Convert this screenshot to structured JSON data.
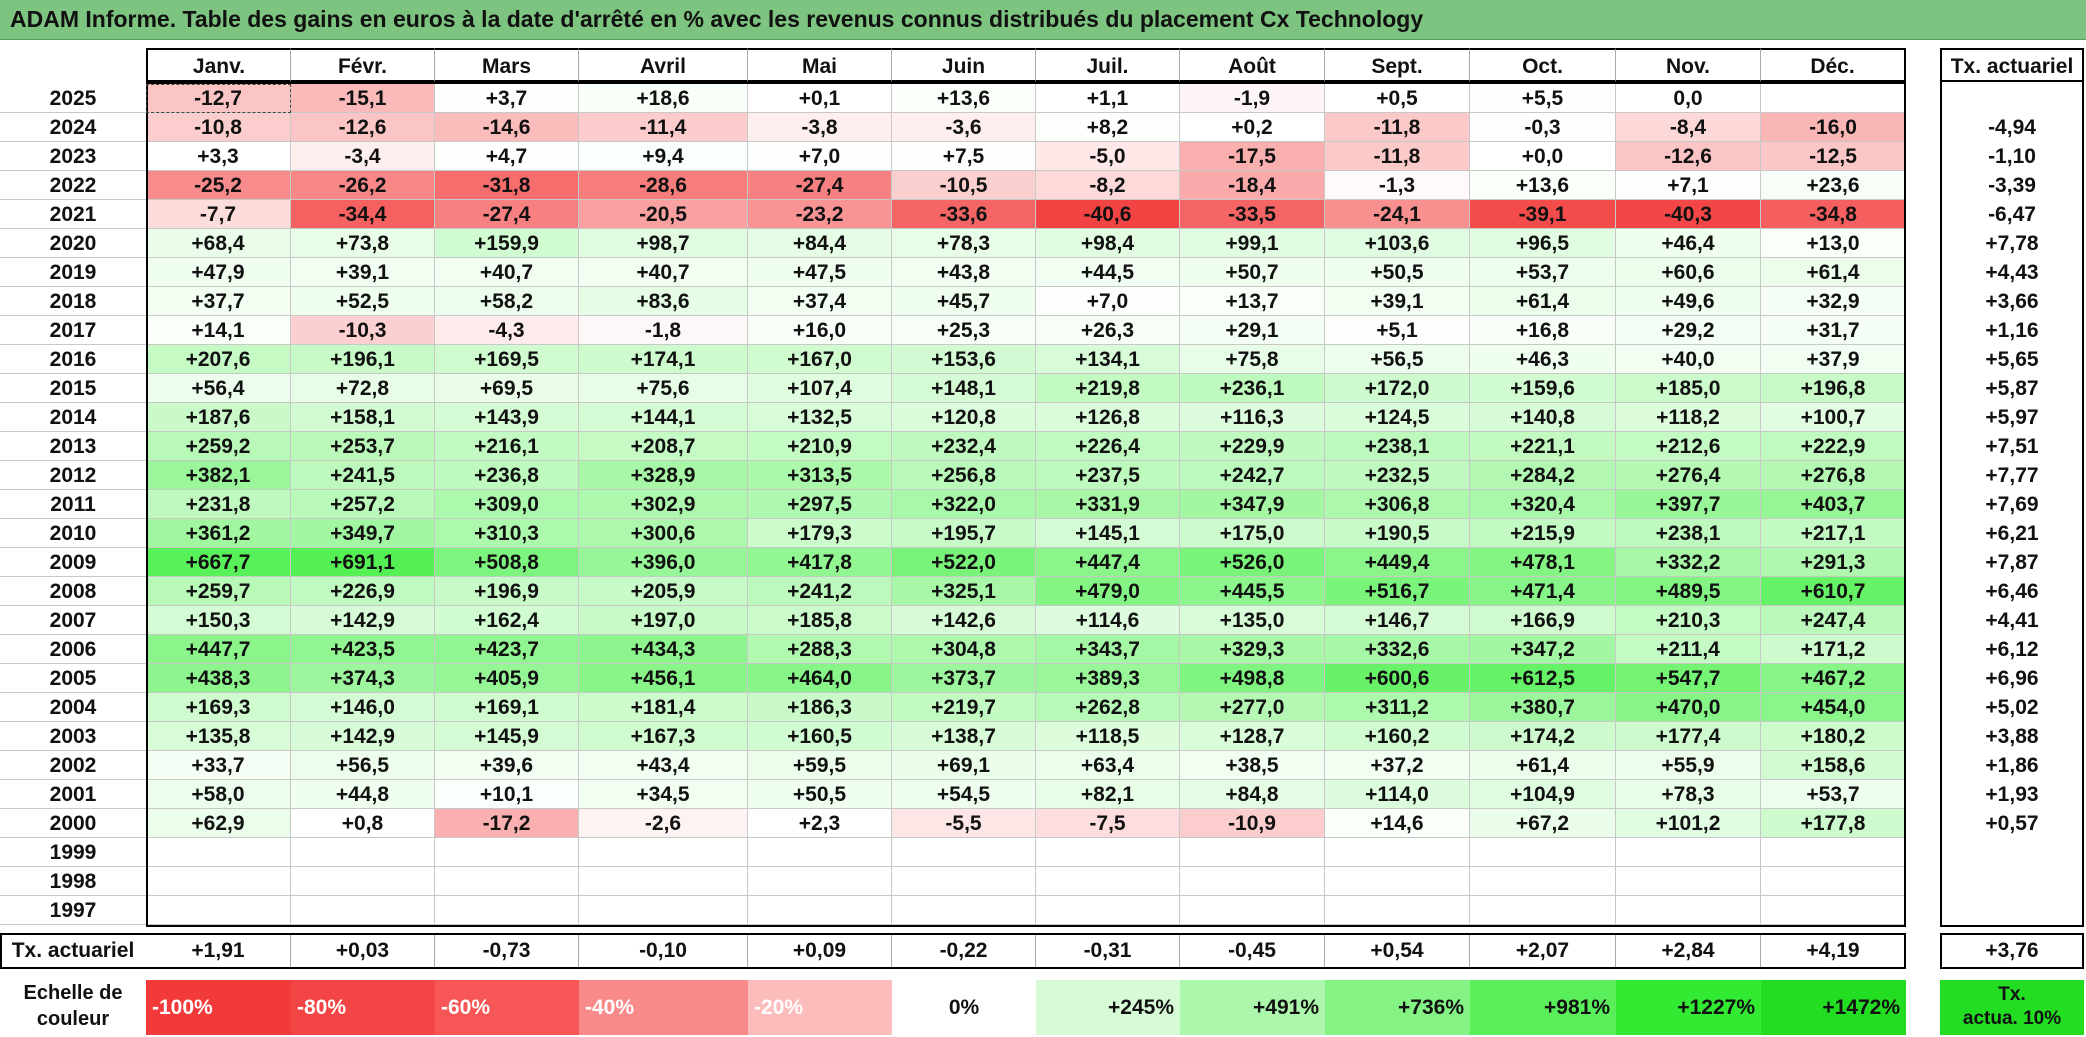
{
  "title": "ADAM Informe. Table des gains en euros à la date d'arrêté en % avec les revenus connus distribués du placement Cx Technology",
  "months": [
    "Janv.",
    "Févr.",
    "Mars",
    "Avril",
    "Mai",
    "Juin",
    "Juil.",
    "Août",
    "Sept.",
    "Oct.",
    "Nov.",
    "Déc."
  ],
  "tx_header": "Tx. actuariel",
  "rows": [
    {
      "year": "2025",
      "values": [
        "-12,7",
        "-15,1",
        "+3,7",
        "+18,6",
        "+0,1",
        "+13,6",
        "+1,1",
        "-1,9",
        "+0,5",
        "+5,5",
        "0,0",
        ""
      ],
      "tx": ""
    },
    {
      "year": "2024",
      "values": [
        "-10,8",
        "-12,6",
        "-14,6",
        "-11,4",
        "-3,8",
        "-3,6",
        "+8,2",
        "+0,2",
        "-11,8",
        "-0,3",
        "-8,4",
        "-16,0"
      ],
      "tx": "-4,94"
    },
    {
      "year": "2023",
      "values": [
        "+3,3",
        "-3,4",
        "+4,7",
        "+9,4",
        "+7,0",
        "+7,5",
        "-5,0",
        "-17,5",
        "-11,8",
        "+0,0",
        "-12,6",
        "-12,5"
      ],
      "tx": "-1,10"
    },
    {
      "year": "2022",
      "values": [
        "-25,2",
        "-26,2",
        "-31,8",
        "-28,6",
        "-27,4",
        "-10,5",
        "-8,2",
        "-18,4",
        "-1,3",
        "+13,6",
        "+7,1",
        "+23,6"
      ],
      "tx": "-3,39"
    },
    {
      "year": "2021",
      "values": [
        "-7,7",
        "-34,4",
        "-27,4",
        "-20,5",
        "-23,2",
        "-33,6",
        "-40,6",
        "-33,5",
        "-24,1",
        "-39,1",
        "-40,3",
        "-34,8"
      ],
      "tx": "-6,47"
    },
    {
      "year": "2020",
      "values": [
        "+68,4",
        "+73,8",
        "+159,9",
        "+98,7",
        "+84,4",
        "+78,3",
        "+98,4",
        "+99,1",
        "+103,6",
        "+96,5",
        "+46,4",
        "+13,0"
      ],
      "tx": "+7,78"
    },
    {
      "year": "2019",
      "values": [
        "+47,9",
        "+39,1",
        "+40,7",
        "+40,7",
        "+47,5",
        "+43,8",
        "+44,5",
        "+50,7",
        "+50,5",
        "+53,7",
        "+60,6",
        "+61,4"
      ],
      "tx": "+4,43"
    },
    {
      "year": "2018",
      "values": [
        "+37,7",
        "+52,5",
        "+58,2",
        "+83,6",
        "+37,4",
        "+45,7",
        "+7,0",
        "+13,7",
        "+39,1",
        "+61,4",
        "+49,6",
        "+32,9"
      ],
      "tx": "+3,66"
    },
    {
      "year": "2017",
      "values": [
        "+14,1",
        "-10,3",
        "-4,3",
        "-1,8",
        "+16,0",
        "+25,3",
        "+26,3",
        "+29,1",
        "+5,1",
        "+16,8",
        "+29,2",
        "+31,7"
      ],
      "tx": "+1,16"
    },
    {
      "year": "2016",
      "values": [
        "+207,6",
        "+196,1",
        "+169,5",
        "+174,1",
        "+167,0",
        "+153,6",
        "+134,1",
        "+75,8",
        "+56,5",
        "+46,3",
        "+40,0",
        "+37,9"
      ],
      "tx": "+5,65"
    },
    {
      "year": "2015",
      "values": [
        "+56,4",
        "+72,8",
        "+69,5",
        "+75,6",
        "+107,4",
        "+148,1",
        "+219,8",
        "+236,1",
        "+172,0",
        "+159,6",
        "+185,0",
        "+196,8"
      ],
      "tx": "+5,87"
    },
    {
      "year": "2014",
      "values": [
        "+187,6",
        "+158,1",
        "+143,9",
        "+144,1",
        "+132,5",
        "+120,8",
        "+126,8",
        "+116,3",
        "+124,5",
        "+140,8",
        "+118,2",
        "+100,7"
      ],
      "tx": "+5,97"
    },
    {
      "year": "2013",
      "values": [
        "+259,2",
        "+253,7",
        "+216,1",
        "+208,7",
        "+210,9",
        "+232,4",
        "+226,4",
        "+229,9",
        "+238,1",
        "+221,1",
        "+212,6",
        "+222,9"
      ],
      "tx": "+7,51"
    },
    {
      "year": "2012",
      "values": [
        "+382,1",
        "+241,5",
        "+236,8",
        "+328,9",
        "+313,5",
        "+256,8",
        "+237,5",
        "+242,7",
        "+232,5",
        "+284,2",
        "+276,4",
        "+276,8"
      ],
      "tx": "+7,77"
    },
    {
      "year": "2011",
      "values": [
        "+231,8",
        "+257,2",
        "+309,0",
        "+302,9",
        "+297,5",
        "+322,0",
        "+331,9",
        "+347,9",
        "+306,8",
        "+320,4",
        "+397,7",
        "+403,7"
      ],
      "tx": "+7,69"
    },
    {
      "year": "2010",
      "values": [
        "+361,2",
        "+349,7",
        "+310,3",
        "+300,6",
        "+179,3",
        "+195,7",
        "+145,1",
        "+175,0",
        "+190,5",
        "+215,9",
        "+238,1",
        "+217,1"
      ],
      "tx": "+6,21"
    },
    {
      "year": "2009",
      "values": [
        "+667,7",
        "+691,1",
        "+508,8",
        "+396,0",
        "+417,8",
        "+522,0",
        "+447,4",
        "+526,0",
        "+449,4",
        "+478,1",
        "+332,2",
        "+291,3"
      ],
      "tx": "+7,87"
    },
    {
      "year": "2008",
      "values": [
        "+259,7",
        "+226,9",
        "+196,9",
        "+205,9",
        "+241,2",
        "+325,1",
        "+479,0",
        "+445,5",
        "+516,7",
        "+471,4",
        "+489,5",
        "+610,7"
      ],
      "tx": "+6,46"
    },
    {
      "year": "2007",
      "values": [
        "+150,3",
        "+142,9",
        "+162,4",
        "+197,0",
        "+185,8",
        "+142,6",
        "+114,6",
        "+135,0",
        "+146,7",
        "+166,9",
        "+210,3",
        "+247,4"
      ],
      "tx": "+4,41"
    },
    {
      "year": "2006",
      "values": [
        "+447,7",
        "+423,5",
        "+423,7",
        "+434,3",
        "+288,3",
        "+304,8",
        "+343,7",
        "+329,3",
        "+332,6",
        "+347,2",
        "+211,4",
        "+171,2"
      ],
      "tx": "+6,12"
    },
    {
      "year": "2005",
      "values": [
        "+438,3",
        "+374,3",
        "+405,9",
        "+456,1",
        "+464,0",
        "+373,7",
        "+389,3",
        "+498,8",
        "+600,6",
        "+612,5",
        "+547,7",
        "+467,2"
      ],
      "tx": "+6,96"
    },
    {
      "year": "2004",
      "values": [
        "+169,3",
        "+146,0",
        "+169,1",
        "+181,4",
        "+186,3",
        "+219,7",
        "+262,8",
        "+277,0",
        "+311,2",
        "+380,7",
        "+470,0",
        "+454,0"
      ],
      "tx": "+5,02"
    },
    {
      "year": "2003",
      "values": [
        "+135,8",
        "+142,9",
        "+145,9",
        "+167,3",
        "+160,5",
        "+138,7",
        "+118,5",
        "+128,7",
        "+160,2",
        "+174,2",
        "+177,4",
        "+180,2"
      ],
      "tx": "+3,88"
    },
    {
      "year": "2002",
      "values": [
        "+33,7",
        "+56,5",
        "+39,6",
        "+43,4",
        "+59,5",
        "+69,1",
        "+63,4",
        "+38,5",
        "+37,2",
        "+61,4",
        "+55,9",
        "+158,6"
      ],
      "tx": "+1,86"
    },
    {
      "year": "2001",
      "values": [
        "+58,0",
        "+44,8",
        "+10,1",
        "+34,5",
        "+50,5",
        "+54,5",
        "+82,1",
        "+84,8",
        "+114,0",
        "+104,9",
        "+78,3",
        "+53,7"
      ],
      "tx": "+1,93"
    },
    {
      "year": "2000",
      "values": [
        "+62,9",
        "+0,8",
        "-17,2",
        "-2,6",
        "+2,3",
        "-5,5",
        "-7,5",
        "-10,9",
        "+14,6",
        "+67,2",
        "+101,2",
        "+177,8"
      ],
      "tx": "+0,57"
    },
    {
      "year": "1999",
      "values": [
        "",
        "",
        "",
        "",
        "",
        "",
        "",
        "",
        "",
        "",
        "",
        ""
      ],
      "tx": ""
    },
    {
      "year": "1998",
      "values": [
        "",
        "",
        "",
        "",
        "",
        "",
        "",
        "",
        "",
        "",
        "",
        ""
      ],
      "tx": ""
    },
    {
      "year": "1997",
      "values": [
        "",
        "",
        "",
        "",
        "",
        "",
        "",
        "",
        "",
        "",
        "",
        ""
      ],
      "tx": ""
    }
  ],
  "footer": {
    "label": "Tx. actuariel",
    "values": [
      "+1,91",
      "+0,03",
      "-0,73",
      "-0,10",
      "+0,09",
      "-0,22",
      "-0,31",
      "-0,45",
      "+0,54",
      "+2,07",
      "+2,84",
      "+4,19"
    ],
    "total": "+3,76"
  },
  "scale": {
    "label_line1": "Echelle de",
    "label_line2": "couleur",
    "items": [
      {
        "label": "-100%",
        "color": "#f23a3a"
      },
      {
        "label": "-80%",
        "color": "#f34545"
      },
      {
        "label": "-60%",
        "color": "#f65656"
      },
      {
        "label": "-40%",
        "color": "#f98a8a"
      },
      {
        "label": "-20%",
        "color": "#fcbcbc"
      },
      {
        "label": "0%",
        "color": "#ffffff"
      },
      {
        "label": "+245%",
        "color": "#d6fbd6"
      },
      {
        "label": "+491%",
        "color": "#adf7ad"
      },
      {
        "label": "+736%",
        "color": "#84f384"
      },
      {
        "label": "+981%",
        "color": "#5bee5b"
      },
      {
        "label": "+1227%",
        "color": "#33ea33"
      },
      {
        "label": "+1472%",
        "color": "#22dd22"
      }
    ],
    "tx_line1": "Tx.",
    "tx_line2": "actua. 10%",
    "tx_color": "#22dd22"
  }
}
